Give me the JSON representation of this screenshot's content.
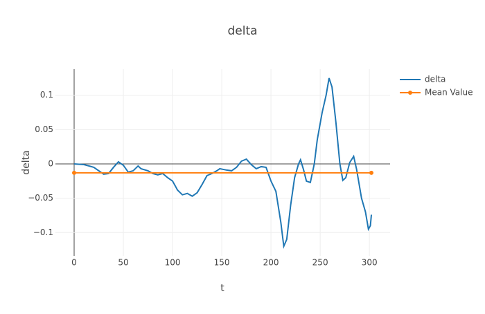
{
  "chart_data": {
    "type": "line",
    "title": "delta",
    "x_label": "t",
    "y_label": "delta",
    "xlim": [
      -19,
      321
    ],
    "ylim": [
      -0.134,
      0.138
    ],
    "xticks": [
      0,
      50,
      100,
      150,
      200,
      250,
      300
    ],
    "yticks": [
      {
        "value": -0.1,
        "label": "−0.1"
      },
      {
        "value": -0.05,
        "label": "−0.05"
      },
      0,
      0.05,
      0.1
    ],
    "grid": true,
    "legend": "right",
    "series": [
      {
        "name": "delta",
        "color": "#1f77b4",
        "markers": false,
        "x": [
          0,
          10,
          20,
          30,
          35,
          40,
          45,
          50,
          55,
          60,
          65,
          68,
          75,
          80,
          85,
          90,
          95,
          100,
          105,
          110,
          115,
          120,
          125,
          130,
          135,
          140,
          145,
          148,
          155,
          160,
          165,
          170,
          175,
          180,
          185,
          190,
          195,
          200,
          205,
          210,
          213,
          216,
          220,
          224,
          228,
          230,
          233,
          236,
          240,
          244,
          247,
          252,
          256,
          259,
          262,
          266,
          270,
          273,
          276,
          280,
          284,
          287,
          292,
          296,
          299,
          301,
          302
        ],
        "values": [
          0,
          -0.001,
          -0.005,
          -0.015,
          -0.014,
          -0.005,
          0.003,
          -0.002,
          -0.012,
          -0.01,
          -0.003,
          -0.007,
          -0.01,
          -0.014,
          -0.016,
          -0.014,
          -0.02,
          -0.025,
          -0.038,
          -0.045,
          -0.043,
          -0.047,
          -0.042,
          -0.03,
          -0.017,
          -0.014,
          -0.01,
          -0.007,
          -0.009,
          -0.01,
          -0.005,
          0.004,
          0.007,
          -0.001,
          -0.007,
          -0.004,
          -0.005,
          -0.025,
          -0.04,
          -0.085,
          -0.12,
          -0.11,
          -0.06,
          -0.02,
          0,
          0.006,
          -0.008,
          -0.025,
          -0.027,
          0,
          0.035,
          0.075,
          0.1,
          0.125,
          0.112,
          0.06,
          0,
          -0.024,
          -0.02,
          0.002,
          0.011,
          -0.008,
          -0.05,
          -0.07,
          -0.095,
          -0.09,
          -0.074
        ]
      },
      {
        "name": "Mean Value",
        "color": "#ff7f0e",
        "markers": true,
        "x": [
          0,
          302
        ],
        "values": [
          -0.013,
          -0.013
        ]
      }
    ]
  }
}
